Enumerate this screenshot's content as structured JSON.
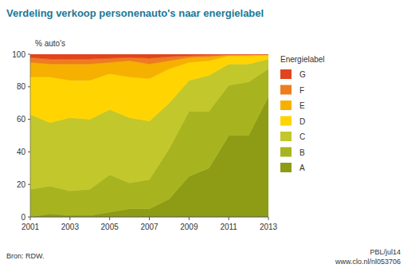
{
  "chart_data": {
    "type": "area",
    "title": "Verdeling verkoop personenauto's naar energielabel",
    "y_label": "% auto's",
    "legend_title": "Energielabel",
    "source": "Bron: RDW.",
    "annotations": [
      "PBL/jul14",
      "www.clo.nl/nl053706"
    ],
    "stacked": true,
    "grid": false,
    "legend": "right",
    "x": [
      2001,
      2002,
      2003,
      2004,
      2005,
      2006,
      2007,
      2008,
      2009,
      2010,
      2011,
      2012,
      2013
    ],
    "xlim": [
      2001,
      2013
    ],
    "xticks": [
      2001,
      2003,
      2005,
      2007,
      2009,
      2011,
      2013
    ],
    "ylim": [
      0,
      100
    ],
    "yticks": [
      0,
      20,
      40,
      60,
      80,
      100
    ],
    "series": [
      {
        "name": "A",
        "color": "#8d9c14",
        "values": [
          0,
          2,
          1,
          1,
          3,
          5,
          5,
          11,
          25,
          30,
          50,
          50,
          74
        ]
      },
      {
        "name": "B",
        "color": "#a7b41f",
        "values": [
          17,
          17,
          15,
          16,
          23,
          16,
          18,
          31,
          40,
          35,
          31,
          33,
          17
        ]
      },
      {
        "name": "C",
        "color": "#c2c72b",
        "values": [
          46,
          39,
          45,
          43,
          40,
          40,
          36,
          28,
          19,
          22,
          13,
          11,
          6
        ]
      },
      {
        "name": "D",
        "color": "#ffd400",
        "values": [
          23,
          28,
          23,
          24,
          22,
          25,
          26,
          21,
          11,
          9,
          5,
          5,
          2.5
        ]
      },
      {
        "name": "E",
        "color": "#f6b000",
        "values": [
          9,
          8,
          10,
          10,
          7,
          10,
          9,
          5,
          3,
          2.5,
          0.5,
          0.7,
          0.3
        ]
      },
      {
        "name": "F",
        "color": "#ee7d1e",
        "values": [
          3,
          3,
          3,
          3,
          2.5,
          2,
          3.5,
          2.5,
          1,
          1,
          0.3,
          0.2,
          0.1
        ]
      },
      {
        "name": "G",
        "color": "#e2441e",
        "values": [
          2,
          3,
          3,
          3,
          2.5,
          2,
          2.5,
          1.5,
          1,
          0.5,
          0.2,
          0.1,
          0.1
        ]
      }
    ]
  }
}
